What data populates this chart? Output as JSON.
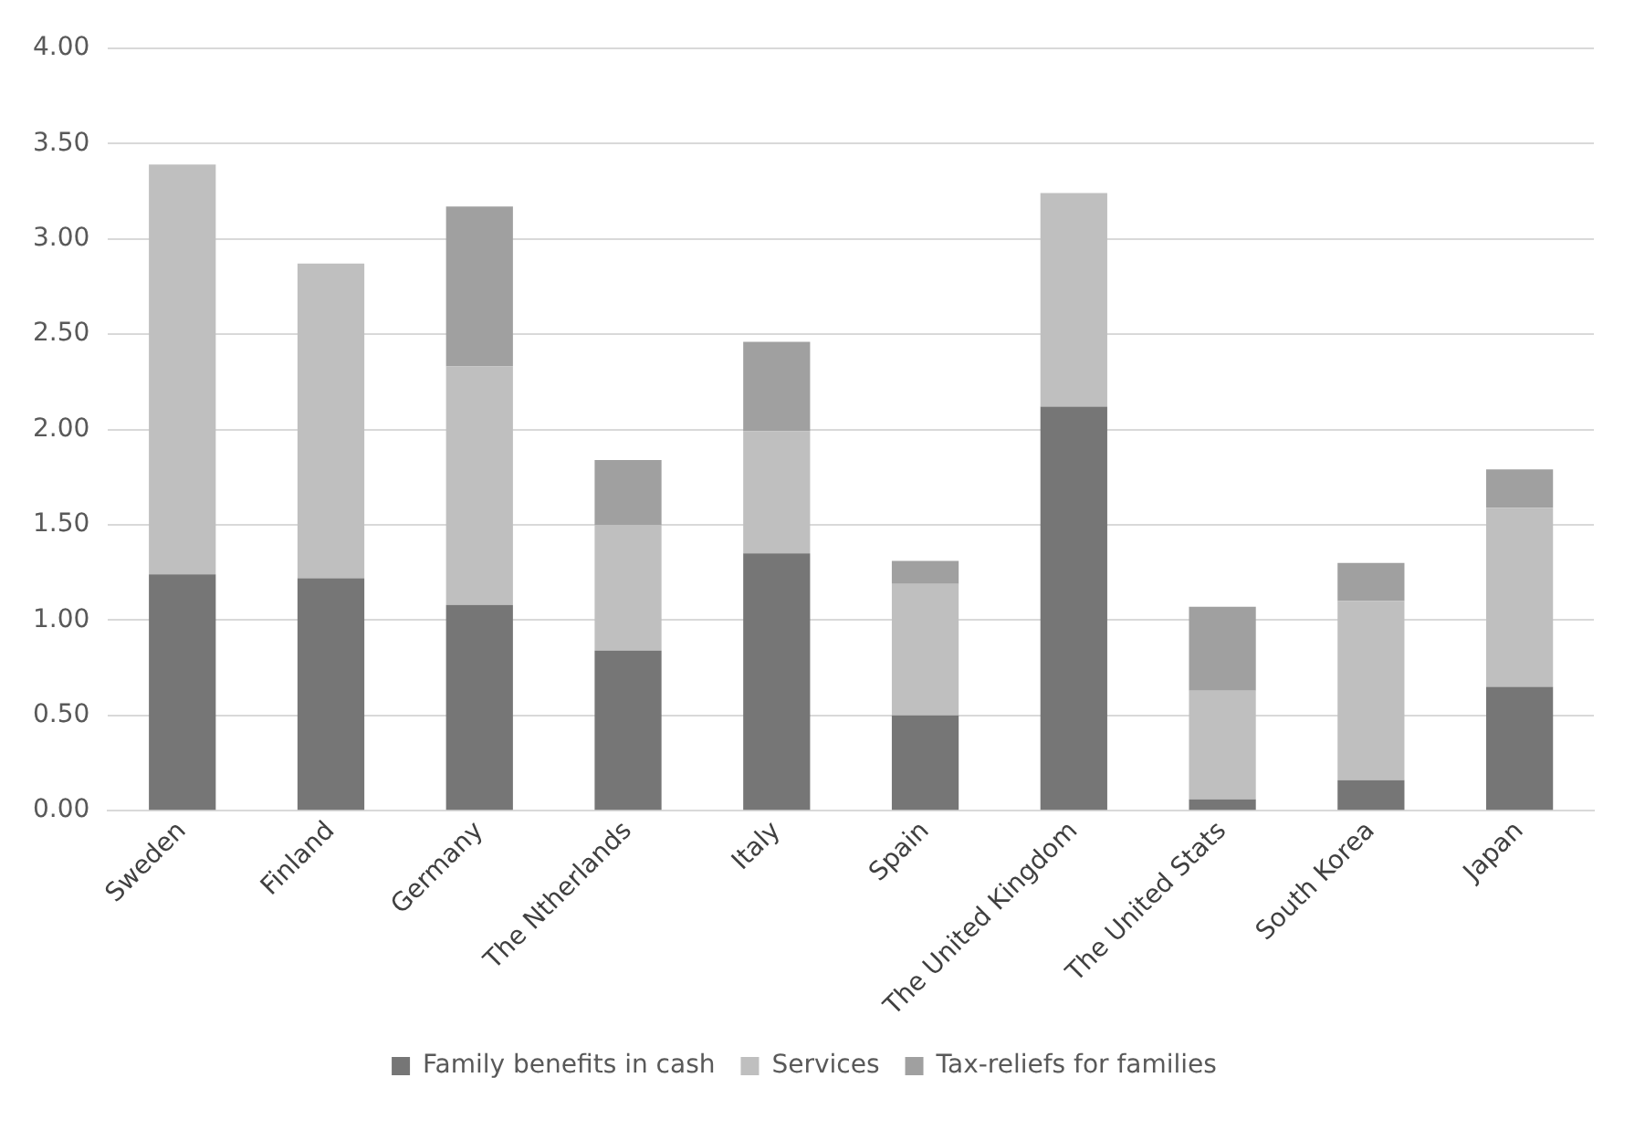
{
  "chart_data": {
    "type": "bar",
    "stacked": true,
    "categories": [
      "Sweden",
      "Finland",
      "Germany",
      "The Ntherlands",
      "Italy",
      "Spain",
      "The United Kingdom",
      "The United Stats",
      "South Korea",
      "Japan"
    ],
    "series": [
      {
        "name": "Family benefits in cash",
        "color": "#767676",
        "values": [
          1.24,
          1.22,
          1.08,
          0.84,
          1.35,
          0.5,
          2.12,
          0.06,
          0.16,
          0.65
        ]
      },
      {
        "name": "Services",
        "color": "#bfbfbf",
        "values": [
          2.15,
          1.65,
          1.25,
          0.66,
          0.64,
          0.69,
          1.12,
          0.57,
          0.94,
          0.94
        ]
      },
      {
        "name": "Tax-reliefs for families",
        "color": "#a0a0a0",
        "values": [
          0,
          0,
          0.84,
          0.34,
          0.47,
          0.12,
          0,
          0.44,
          0.2,
          0.2
        ]
      }
    ],
    "ylim": [
      0,
      4
    ],
    "yticks": [
      {
        "value": 0,
        "label": "0.00"
      },
      {
        "value": 0.5,
        "label": "0.50"
      },
      {
        "value": 1,
        "label": "1.00"
      },
      {
        "value": 1.5,
        "label": "1.50"
      },
      {
        "value": 2,
        "label": "2.00"
      },
      {
        "value": 2.5,
        "label": "2.50"
      },
      {
        "value": 3,
        "label": "3.00"
      },
      {
        "value": 3.5,
        "label": "3.50"
      },
      {
        "value": 4,
        "label": "4.00"
      }
    ],
    "grid": "y",
    "legend": "bottom"
  }
}
